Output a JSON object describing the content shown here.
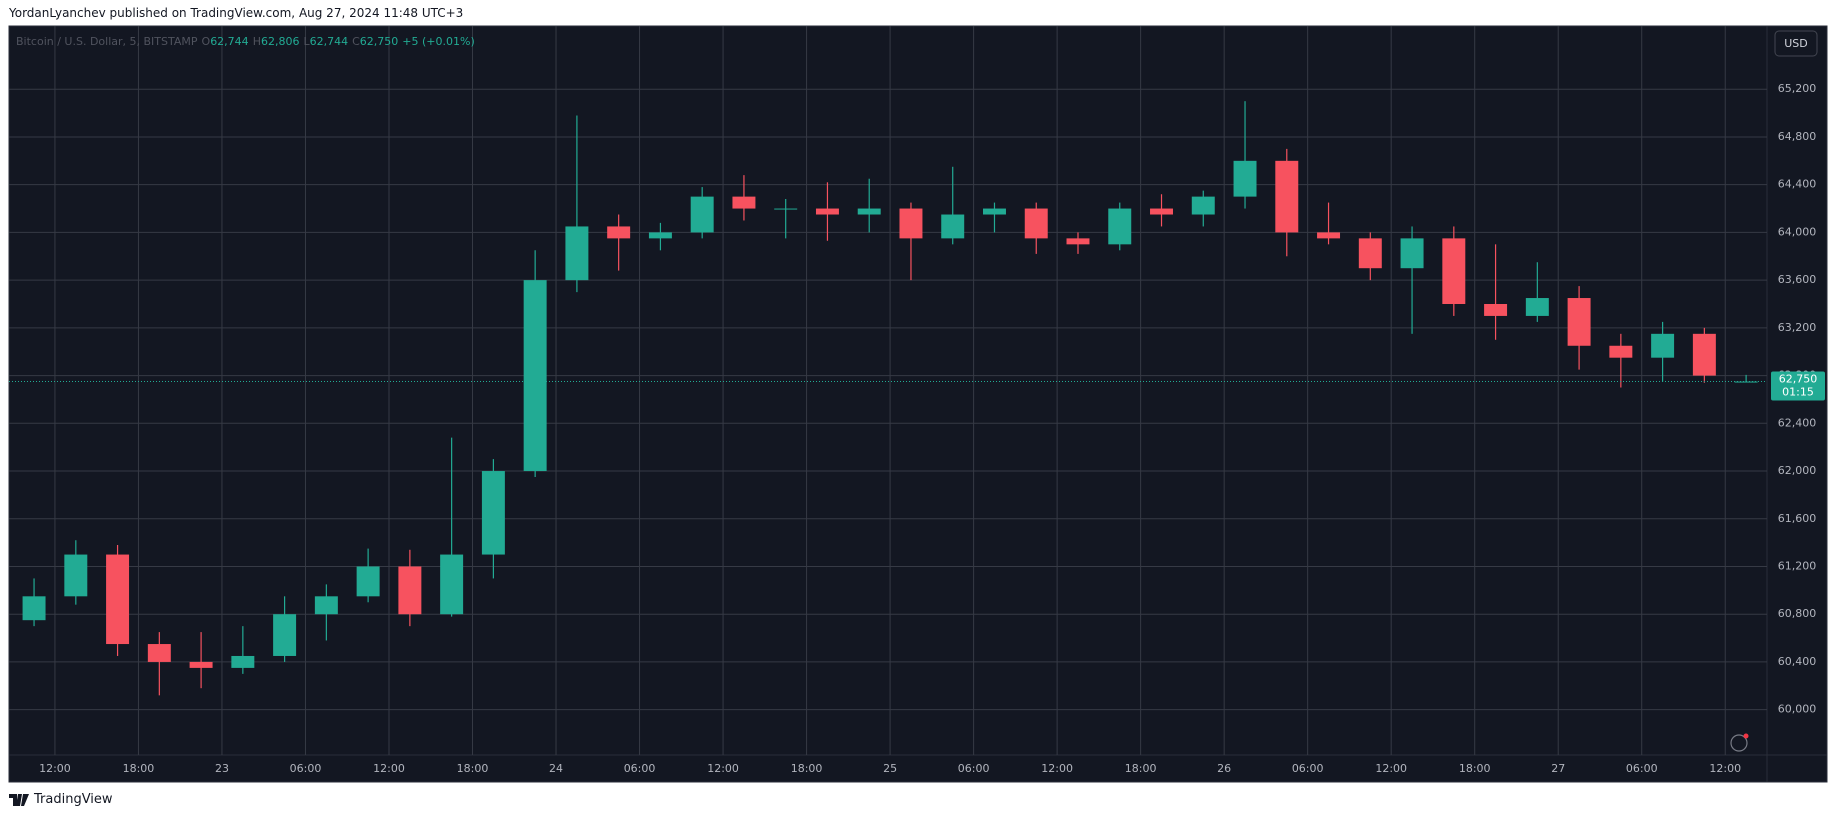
{
  "header": "YordanLyanchev published on TradingView.com, Aug 27, 2024 11:48 UTC+3",
  "footer": "TradingView",
  "chart_data": {
    "type": "candlestick",
    "legend": {
      "symbol": "Bitcoin / U.S. Dollar, 5, BITSTAMP",
      "ohlc": [
        {
          "label": "O",
          "value": "62,744"
        },
        {
          "label": "H",
          "value": "62,806"
        },
        {
          "label": "L",
          "value": "62,744"
        },
        {
          "label": "C",
          "value": "62,750"
        }
      ],
      "change": "+5 (+0.01%)"
    },
    "currency": "USD",
    "up_color": "#22ab94",
    "down_color": "#f7525f",
    "grid": true,
    "open": [
      60750,
      60950,
      61300,
      60550,
      60400,
      60350,
      60450,
      60800,
      60950,
      61200,
      60800,
      61300,
      62000,
      63600,
      64050,
      63950,
      64000,
      64300,
      64200,
      64200,
      64150,
      64200,
      63950,
      64150,
      64200,
      63950,
      63900,
      64200,
      64150,
      64300,
      64600,
      64000,
      63950,
      63700,
      63950,
      63400,
      63300,
      63450,
      63050,
      62950,
      63150,
      62744
    ],
    "high": [
      61100,
      61420,
      61380,
      60650,
      60650,
      60700,
      60950,
      61050,
      61350,
      61340,
      62280,
      62100,
      63850,
      64980,
      64150,
      64080,
      64380,
      64480,
      64280,
      64420,
      64450,
      64250,
      64550,
      64250,
      64250,
      64000,
      64250,
      64320,
      64350,
      65100,
      64700,
      64250,
      64000,
      64050,
      64050,
      63900,
      63750,
      63550,
      63150,
      63250,
      63200,
      62806
    ],
    "low": [
      60700,
      60880,
      60450,
      60120,
      60180,
      60300,
      60400,
      60580,
      60900,
      60700,
      60780,
      61100,
      61950,
      63500,
      63680,
      63850,
      63950,
      64100,
      63950,
      63930,
      64000,
      63600,
      63900,
      64000,
      63820,
      63820,
      63850,
      64050,
      64050,
      64200,
      63800,
      63900,
      63600,
      63150,
      63300,
      63100,
      63250,
      62850,
      62700,
      62750,
      62740,
      62744
    ],
    "close": [
      60950,
      61300,
      60550,
      60400,
      60350,
      60450,
      60800,
      60950,
      61200,
      60800,
      61300,
      62000,
      63600,
      64050,
      63950,
      64000,
      64300,
      64200,
      64200,
      64150,
      64200,
      63950,
      64150,
      64200,
      63950,
      63900,
      64200,
      64150,
      64300,
      64600,
      64000,
      63950,
      63700,
      63950,
      63400,
      63300,
      63450,
      63050,
      62950,
      63150,
      62800,
      62750
    ],
    "last_price": {
      "value": 62750,
      "label": "62,750"
    },
    "countdown": "01:15",
    "xlim": [
      -0.1,
      42
    ],
    "xticks": [
      {
        "value": 1,
        "label": "12:00"
      },
      {
        "value": 3,
        "label": "18:00"
      },
      {
        "value": 5,
        "label": "23"
      },
      {
        "value": 7,
        "label": "06:00"
      },
      {
        "value": 9,
        "label": "12:00"
      },
      {
        "value": 11,
        "label": "18:00"
      },
      {
        "value": 13,
        "label": "24"
      },
      {
        "value": 15,
        "label": "06:00"
      },
      {
        "value": 17,
        "label": "12:00"
      },
      {
        "value": 19,
        "label": "18:00"
      },
      {
        "value": 21,
        "label": "25"
      },
      {
        "value": 23,
        "label": "06:00"
      },
      {
        "value": 25,
        "label": "12:00"
      },
      {
        "value": 27,
        "label": "18:00"
      },
      {
        "value": 29,
        "label": "26"
      },
      {
        "value": 31,
        "label": "06:00"
      },
      {
        "value": 33,
        "label": "12:00"
      },
      {
        "value": 35,
        "label": "18:00"
      },
      {
        "value": 37,
        "label": "27"
      },
      {
        "value": 39,
        "label": "06:00"
      },
      {
        "value": 41,
        "label": "12:00"
      }
    ],
    "ylim": [
      59620,
      65730
    ],
    "yticks": [
      {
        "value": 60000,
        "label": "60,000"
      },
      {
        "value": 60400,
        "label": "60,400"
      },
      {
        "value": 60800,
        "label": "60,800"
      },
      {
        "value": 61200,
        "label": "61,200"
      },
      {
        "value": 61600,
        "label": "61,600"
      },
      {
        "value": 62000,
        "label": "62,000"
      },
      {
        "value": 62400,
        "label": "62,400"
      },
      {
        "value": 62800,
        "label": "62,800"
      },
      {
        "value": 63200,
        "label": "63,200"
      },
      {
        "value": 63600,
        "label": "63,600"
      },
      {
        "value": 64000,
        "label": "64,000"
      },
      {
        "value": 64400,
        "label": "64,400"
      },
      {
        "value": 64800,
        "label": "64,800"
      },
      {
        "value": 65200,
        "label": "65,200"
      }
    ]
  }
}
